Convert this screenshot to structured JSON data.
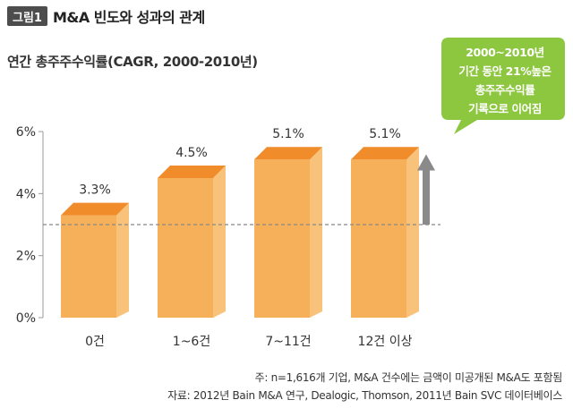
{
  "figure": {
    "badge": "그림1",
    "title": "M&A 빈도와 성과의 관계"
  },
  "chart_data": {
    "type": "bar",
    "title": "M&A 빈도와 성과의 관계",
    "subtitle": "연간 총주주수익률(CAGR, 2000-2010년)",
    "categories": [
      "0건",
      "1~6건",
      "7~11건",
      "12건 이상"
    ],
    "values": [
      3.3,
      4.5,
      5.1,
      5.1
    ],
    "value_labels": [
      "3.3%",
      "4.5%",
      "5.1%",
      "5.1%"
    ],
    "ylim": [
      0,
      6
    ],
    "yticks": [
      0,
      2,
      4,
      6
    ],
    "ytick_labels": [
      "0%",
      "2%",
      "4%",
      "6%"
    ],
    "reference_line": 3.0,
    "grid": false,
    "bar_color": "#f7b05a",
    "bar_side_color": "#f9c27a",
    "bar_top_color": "#f08c2a",
    "annotation": [
      "2000~2010년",
      "기간 동안 21%높은",
      "총주주수익률",
      "기록으로 이어짐"
    ],
    "annotation_color": "#8dc63f"
  },
  "notes": {
    "line1": "주: n=1,616개 기업, M&A 건수에는 금액이 미공개된 M&A도 포함됨",
    "line2": "자료: 2012년 Bain M&A 연구, Dealogic, Thomson, 2011년 Bain SVC 데이터베이스"
  }
}
